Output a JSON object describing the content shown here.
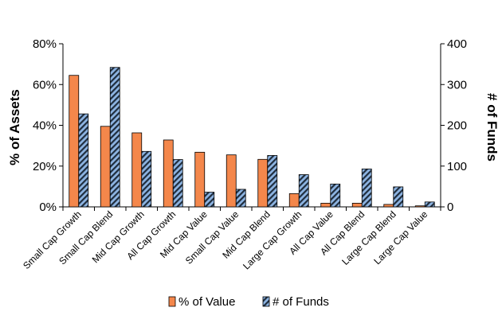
{
  "chart_data": {
    "type": "bar",
    "categories": [
      "Small Cap Growth",
      "Small Cap Blend",
      "Mid Cap Growth",
      "All Cap Growth",
      "Mid Cap Value",
      "Small Cap Value",
      "Mid Cap Blend",
      "Large Cap Growth",
      "All Cap Value",
      "All Cap Blend",
      "Large Cap Blend",
      "Large Cap Value"
    ],
    "series": [
      {
        "name": "% of Value",
        "axis": "left",
        "color": "#f4874b",
        "values": [
          64.5,
          39.5,
          36.3,
          32.8,
          26.8,
          25.5,
          23.3,
          6.5,
          1.8,
          1.8,
          1.2,
          0.5
        ]
      },
      {
        "name": "# of Funds",
        "axis": "right",
        "color": "#8db4e2",
        "pattern": "diagonal-hatch",
        "values": [
          228,
          342,
          136,
          116,
          36,
          43,
          126,
          79,
          56,
          93,
          49,
          12
        ]
      }
    ],
    "left_axis": {
      "label": "% of Assets",
      "ylim": [
        0,
        80
      ],
      "ticks": [
        "0%",
        "20%",
        "40%",
        "60%",
        "80%"
      ]
    },
    "right_axis": {
      "label": "# of Funds",
      "ylim": [
        0,
        400
      ],
      "ticks": [
        "0",
        "100",
        "200",
        "300",
        "400"
      ]
    },
    "grid": false,
    "legend_position": "bottom"
  }
}
